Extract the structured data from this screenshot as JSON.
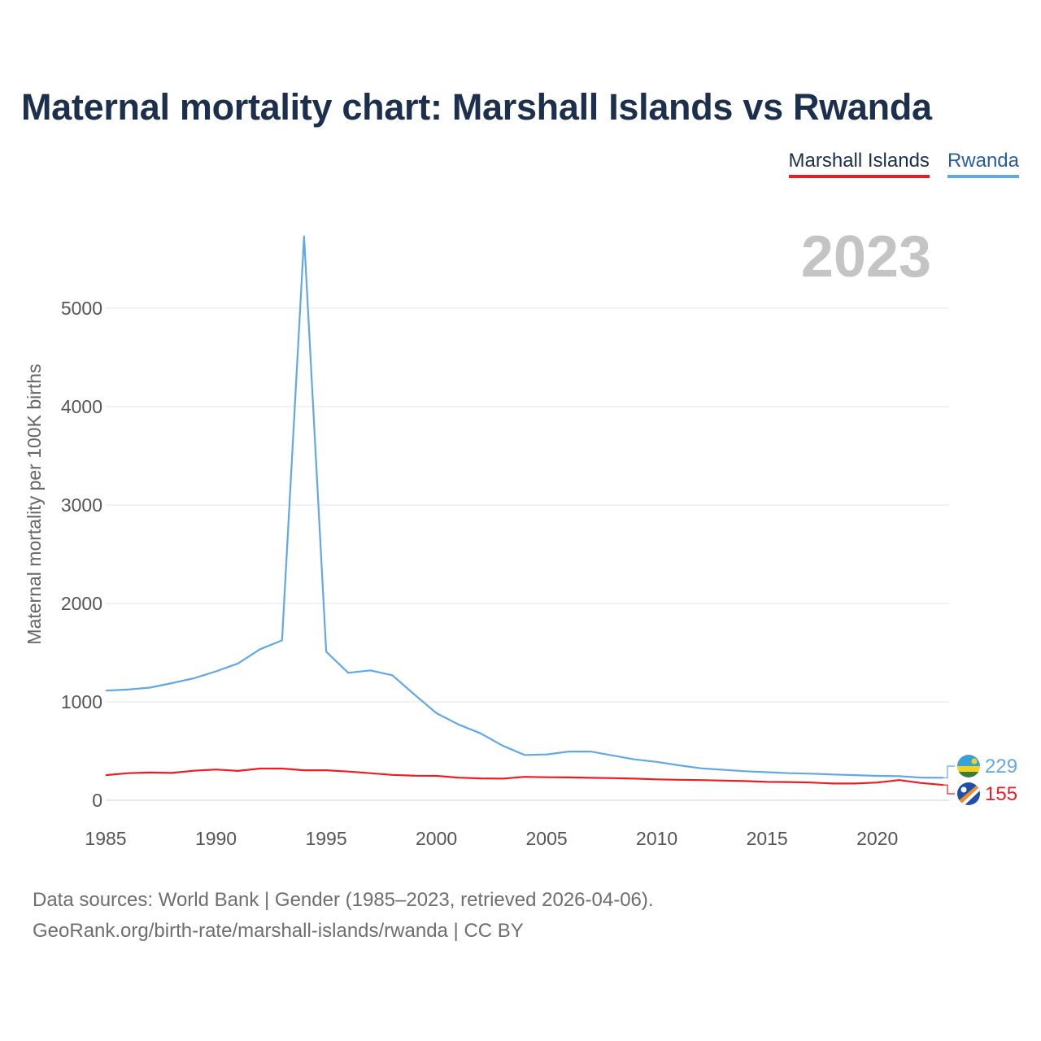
{
  "title": "Maternal mortality chart: Marshall Islands vs Rwanda",
  "legend": [
    {
      "name": "Marshall Islands",
      "color": "#ee1b24"
    },
    {
      "name": "Rwanda",
      "color": "#62a8e5"
    }
  ],
  "chart_data": {
    "type": "line",
    "title": "Maternal mortality chart: Marshall Islands vs Rwanda",
    "xlabel": "",
    "ylabel": "Maternal mortality per 100K births",
    "year_label": "2023",
    "xlim": [
      1985,
      2023
    ],
    "ylim": [
      0,
      5000
    ],
    "x_ticks": [
      1985,
      1990,
      1995,
      2000,
      2005,
      2010,
      2015,
      2020
    ],
    "y_ticks": [
      0,
      1000,
      2000,
      3000,
      4000,
      5000
    ],
    "grid": true,
    "x": [
      1985,
      1986,
      1987,
      1988,
      1989,
      1990,
      1991,
      1992,
      1993,
      1994,
      1995,
      1996,
      1997,
      1998,
      1999,
      2000,
      2001,
      2002,
      2003,
      2004,
      2005,
      2006,
      2007,
      2008,
      2009,
      2010,
      2011,
      2012,
      2013,
      2014,
      2015,
      2016,
      2017,
      2018,
      2019,
      2020,
      2021,
      2022,
      2023
    ],
    "series": [
      {
        "name": "Rwanda",
        "color": "#62a8e5",
        "end_label": "229",
        "values": [
          1115,
          1125,
          1145,
          1190,
          1240,
          1310,
          1390,
          1535,
          1625,
          5730,
          1510,
          1295,
          1320,
          1270,
          1075,
          885,
          770,
          680,
          555,
          460,
          465,
          495,
          495,
          455,
          415,
          390,
          355,
          325,
          310,
          295,
          285,
          275,
          270,
          262,
          255,
          248,
          245,
          230,
          229
        ]
      },
      {
        "name": "Marshall Islands",
        "color": "#ee1b24",
        "end_label": "155",
        "values": [
          255,
          275,
          282,
          278,
          300,
          312,
          298,
          322,
          322,
          305,
          305,
          292,
          275,
          258,
          250,
          248,
          230,
          222,
          220,
          238,
          234,
          232,
          228,
          225,
          220,
          212,
          208,
          205,
          200,
          195,
          187,
          185,
          180,
          170,
          170,
          180,
          205,
          175,
          155
        ]
      }
    ]
  },
  "footer": {
    "line1": "Data sources: World Bank | Gender (1985–2023, retrieved 2026-04-06).",
    "line2": "GeoRank.org/birth-rate/marshall-islands/rwanda | CC BY"
  }
}
